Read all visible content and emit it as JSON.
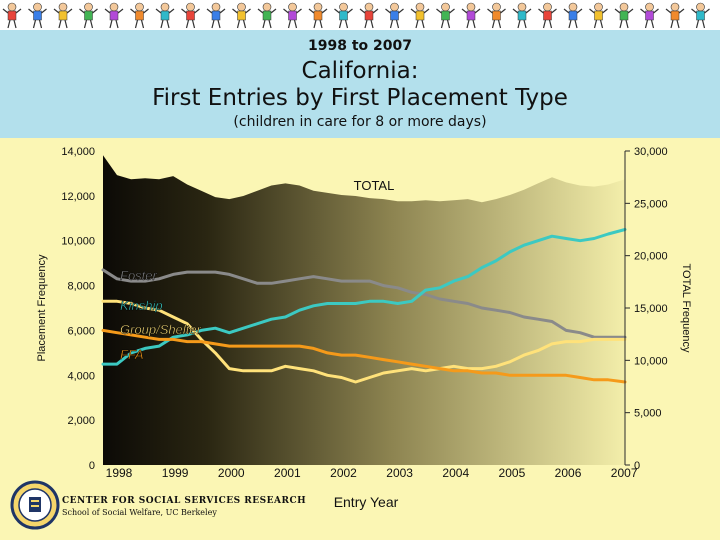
{
  "header": {
    "years": "1998 to 2007",
    "title_line1": "California:",
    "title_line2": "First Entries by First Placement Type",
    "subtitle": "(children in care for 8 or more days)"
  },
  "footer": {
    "org": "CENTER FOR SOCIAL SERVICES RESEARCH",
    "sub": "School of Social Welfare, UC Berkeley"
  },
  "colors": {
    "banner": "#ffffff",
    "header_bg": "#b3e0ec",
    "page_bg": "#fbf6b4",
    "foster": "#8a8a8a",
    "kinship": "#3cc9c2",
    "group_shelter": "#ffe27a",
    "ffa": "#f59a1a",
    "total_fill": "#1e1a0c"
  },
  "chart_data": {
    "type": "line",
    "xlabel": "Entry Year",
    "ylabel": "Placement Frequency",
    "y2label": "TOTAL Frequency",
    "x_ticks": [
      "1998",
      "1999",
      "2000",
      "2001",
      "2002",
      "2003",
      "2004",
      "2005",
      "2006",
      "2007"
    ],
    "x_tick_values": [
      1998,
      1999,
      2000,
      2001,
      2002,
      2003,
      2004,
      2005,
      2006,
      2007
    ],
    "xlim": [
      1998,
      2007.3
    ],
    "ylim": [
      0,
      14000
    ],
    "y_ticks": [
      "0",
      "2,000",
      "4,000",
      "6,000",
      "8,000",
      "10,000",
      "12,000",
      "14,000"
    ],
    "y_tick_values": [
      0,
      2000,
      4000,
      6000,
      8000,
      10000,
      12000,
      14000
    ],
    "y2lim": [
      0,
      30000
    ],
    "y2_ticks": [
      "0",
      "5,000",
      "10,000",
      "15,000",
      "20,000",
      "25,000",
      "30,000"
    ],
    "y2_tick_values": [
      0,
      5000,
      10000,
      15000,
      20000,
      25000,
      30000
    ],
    "area": {
      "name": "TOTAL",
      "axis": "right",
      "x": [
        1998,
        1998.25,
        1998.5,
        1998.75,
        1999,
        1999.25,
        1999.5,
        1999.75,
        2000,
        2000.25,
        2000.5,
        2000.75,
        2001,
        2001.25,
        2001.5,
        2001.75,
        2002,
        2002.25,
        2002.5,
        2002.75,
        2003,
        2003.25,
        2003.5,
        2003.75,
        2004,
        2004.25,
        2004.5,
        2004.75,
        2005,
        2005.25,
        2005.5,
        2005.75,
        2006,
        2006.25,
        2006.5,
        2006.75,
        2007,
        2007.3
      ],
      "values": [
        29600,
        27700,
        27300,
        27400,
        27300,
        27600,
        26800,
        26200,
        25600,
        25400,
        25700,
        26200,
        26700,
        26900,
        26700,
        26200,
        26000,
        25800,
        25700,
        25500,
        25400,
        25200,
        25200,
        25300,
        25200,
        25300,
        25400,
        25100,
        25400,
        25800,
        26300,
        26900,
        27500,
        27000,
        26700,
        26600,
        26800,
        27300
      ]
    },
    "series": [
      {
        "name": "Foster",
        "color": "#8a8a8a",
        "x": [
          1998,
          1998.25,
          1998.5,
          1998.75,
          1999,
          1999.25,
          1999.5,
          1999.75,
          2000,
          2000.25,
          2000.5,
          2000.75,
          2001,
          2001.25,
          2001.5,
          2001.75,
          2002,
          2002.25,
          2002.5,
          2002.75,
          2003,
          2003.25,
          2003.5,
          2003.75,
          2004,
          2004.25,
          2004.5,
          2004.75,
          2005,
          2005.25,
          2005.5,
          2005.75,
          2006,
          2006.25,
          2006.5,
          2006.75,
          2007,
          2007.3
        ],
        "values": [
          8700,
          8300,
          8200,
          8200,
          8300,
          8500,
          8600,
          8600,
          8600,
          8500,
          8300,
          8100,
          8100,
          8200,
          8300,
          8400,
          8300,
          8200,
          8200,
          8200,
          8000,
          7900,
          7700,
          7600,
          7400,
          7300,
          7200,
          7000,
          6900,
          6800,
          6600,
          6500,
          6400,
          6000,
          5900,
          5700,
          5700,
          5700
        ]
      },
      {
        "name": "Kinship",
        "color": "#3cc9c2",
        "x": [
          1998,
          1998.25,
          1998.5,
          1998.75,
          1999,
          1999.25,
          1999.5,
          1999.75,
          2000,
          2000.25,
          2000.5,
          2000.75,
          2001,
          2001.25,
          2001.5,
          2001.75,
          2002,
          2002.25,
          2002.5,
          2002.75,
          2003,
          2003.25,
          2003.5,
          2003.75,
          2004,
          2004.25,
          2004.5,
          2004.75,
          2005,
          2005.25,
          2005.5,
          2005.75,
          2006,
          2006.25,
          2006.5,
          2006.75,
          2007,
          2007.3
        ],
        "values": [
          4500,
          4500,
          5000,
          5200,
          5300,
          5700,
          5800,
          6000,
          6100,
          5900,
          6100,
          6300,
          6500,
          6600,
          6900,
          7100,
          7200,
          7200,
          7200,
          7300,
          7300,
          7200,
          7300,
          7800,
          7900,
          8200,
          8400,
          8800,
          9100,
          9500,
          9800,
          10000,
          10200,
          10100,
          10000,
          10100,
          10300,
          10500
        ]
      },
      {
        "name": "Group/Shelter",
        "color": "#ffe27a",
        "x": [
          1998,
          1998.25,
          1998.5,
          1998.75,
          1999,
          1999.25,
          1999.5,
          1999.75,
          2000,
          2000.25,
          2000.5,
          2000.75,
          2001,
          2001.25,
          2001.5,
          2001.75,
          2002,
          2002.25,
          2002.5,
          2002.75,
          2003,
          2003.25,
          2003.5,
          2003.75,
          2004,
          2004.25,
          2004.5,
          2004.75,
          2005,
          2005.25,
          2005.5,
          2005.75,
          2006,
          2006.25,
          2006.5,
          2006.75,
          2007,
          2007.3
        ],
        "values": [
          7300,
          7300,
          7200,
          7000,
          6900,
          6600,
          6300,
          5600,
          5000,
          4300,
          4200,
          4200,
          4200,
          4400,
          4300,
          4200,
          4000,
          3900,
          3700,
          3900,
          4100,
          4200,
          4300,
          4200,
          4300,
          4400,
          4300,
          4300,
          4400,
          4600,
          4900,
          5100,
          5400,
          5500,
          5500,
          5600,
          5600,
          5600
        ]
      },
      {
        "name": "FFA",
        "color": "#f59a1a",
        "x": [
          1998,
          1998.25,
          1998.5,
          1998.75,
          1999,
          1999.25,
          1999.5,
          1999.75,
          2000,
          2000.25,
          2000.5,
          2000.75,
          2001,
          2001.25,
          2001.5,
          2001.75,
          2002,
          2002.25,
          2002.5,
          2002.75,
          2003,
          2003.25,
          2003.5,
          2003.75,
          2004,
          2004.25,
          2004.5,
          2004.75,
          2005,
          2005.25,
          2005.5,
          2005.75,
          2006,
          2006.25,
          2006.5,
          2006.75,
          2007,
          2007.3
        ],
        "values": [
          6000,
          5900,
          5800,
          5700,
          5600,
          5600,
          5500,
          5500,
          5400,
          5300,
          5300,
          5300,
          5300,
          5300,
          5300,
          5200,
          5000,
          4900,
          4900,
          4800,
          4700,
          4600,
          4500,
          4400,
          4300,
          4200,
          4200,
          4100,
          4100,
          4000,
          4000,
          4000,
          4000,
          4000,
          3900,
          3800,
          3800,
          3700
        ]
      }
    ],
    "grid": false,
    "legend": "inline-left"
  }
}
